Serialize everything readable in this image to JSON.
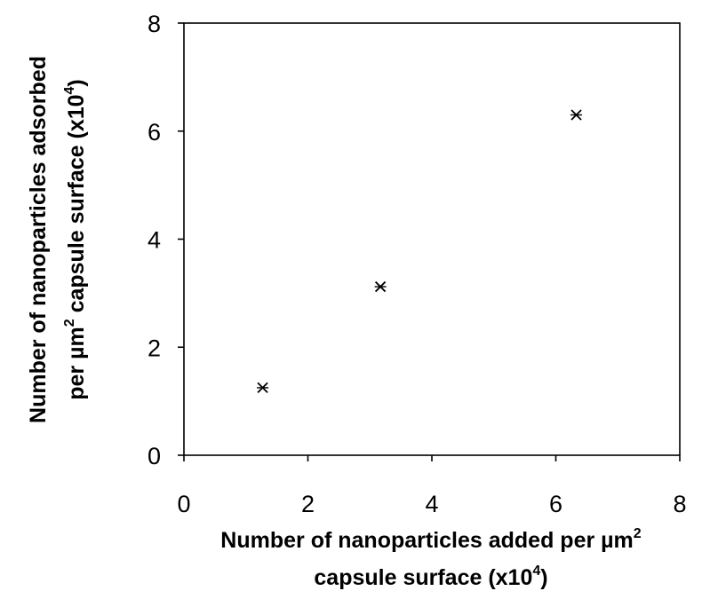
{
  "chart_data": {
    "type": "scatter",
    "xlabel_line1": "Number of nanoparticles added per µm",
    "xlabel_line1_sup": "2",
    "xlabel_line2": "capsule surface (x10",
    "xlabel_line2_sup": "4",
    "xlabel_line2_end": ")",
    "ylabel_line1": "Number of nanoparticles adsorbed",
    "ylabel_line2_a": "per µm",
    "ylabel_line2_sup1": "2",
    "ylabel_line2_b": " capsule surface (x10",
    "ylabel_line2_sup2": "4",
    "ylabel_line2_end": ")",
    "xlim": [
      0,
      8
    ],
    "ylim": [
      0,
      8
    ],
    "xticks": [
      "0",
      "2",
      "4",
      "6",
      "8"
    ],
    "yticks": [
      "0",
      "2",
      "4",
      "6",
      "8"
    ],
    "grid": false,
    "marker": "asterisk",
    "points": [
      {
        "x": 1.27,
        "y": 1.25
      },
      {
        "x": 3.17,
        "y": 3.12
      },
      {
        "x": 6.33,
        "y": 6.3
      }
    ]
  }
}
